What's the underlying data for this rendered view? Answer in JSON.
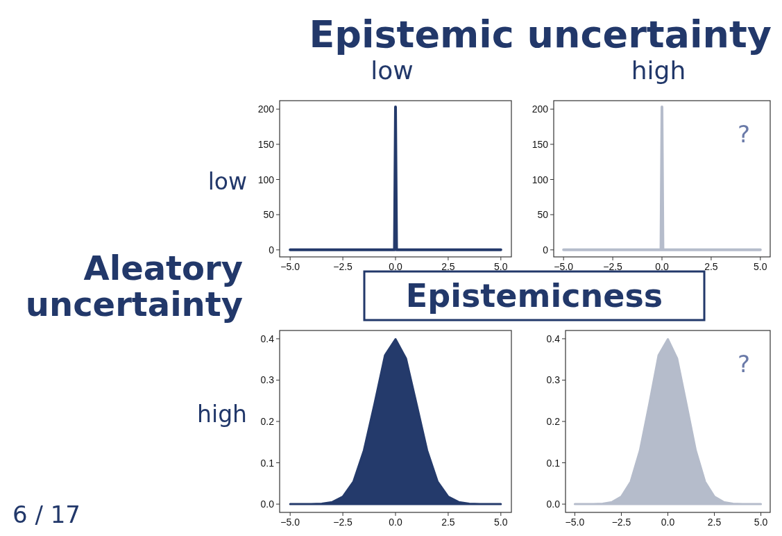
{
  "chart_data": [
    {
      "type": "line",
      "title": "low",
      "ylabel": "low",
      "annotations": [
        "Epistemic uncertainty",
        "Aleatory uncertainty",
        "Epistemicness",
        "6 / 17"
      ],
      "x": [
        -5,
        -0.05,
        0,
        0.05,
        5
      ],
      "series": [
        {
          "color": "#243a6b",
          "values": [
            0,
            0,
            203,
            0,
            0
          ]
        }
      ],
      "xlim": [
        -5.5,
        5.5
      ],
      "ylim": [
        -10,
        212
      ],
      "xticks": [
        {
          "value": -5,
          "label": "−5.0"
        },
        {
          "value": -2.5,
          "label": "−2.5"
        },
        {
          "value": 0,
          "label": "0.0"
        },
        {
          "value": 2.5,
          "label": "2.5"
        },
        {
          "value": 5,
          "label": "5.0"
        }
      ],
      "yticks": [
        0,
        50,
        100,
        150,
        200
      ]
    },
    {
      "type": "line",
      "title": "high",
      "annotations": [
        "?"
      ],
      "x": [
        -5,
        -0.05,
        0,
        0.05,
        5
      ],
      "series": [
        {
          "color": "#b5bccb",
          "values": [
            0,
            0,
            203,
            0,
            0
          ]
        }
      ],
      "xlim": [
        -5.5,
        5.5
      ],
      "ylim": [
        -10,
        212
      ],
      "xticks": [
        {
          "value": -5,
          "label": "−5.0"
        },
        {
          "value": -2.5,
          "label": "−2.5"
        },
        {
          "value": 0,
          "label": "0.0"
        },
        {
          "value": 2.5,
          "label": "2.5"
        },
        {
          "value": 5,
          "label": "5.0"
        }
      ],
      "yticks": [
        0,
        50,
        100,
        150,
        200
      ]
    },
    {
      "type": "area",
      "ylabel": "high",
      "x": [
        -5,
        -4.5,
        -4,
        -3.5,
        -3,
        -2.5,
        -2,
        -1.5,
        -1,
        -0.5,
        0,
        0.5,
        1,
        1.5,
        2,
        2.5,
        3,
        3.5,
        4,
        4.5,
        5
      ],
      "series": [
        {
          "color": "#243a6b",
          "values": [
            0,
            0,
            0,
            0.001,
            0.005,
            0.018,
            0.054,
            0.13,
            0.242,
            0.36,
            0.399,
            0.352,
            0.242,
            0.13,
            0.054,
            0.018,
            0.005,
            0.001,
            0,
            0,
            0
          ]
        }
      ],
      "xlim": [
        -5.5,
        5.5
      ],
      "ylim": [
        -0.02,
        0.42
      ],
      "xticks": [
        {
          "value": -5,
          "label": "−5.0"
        },
        {
          "value": -2.5,
          "label": "−2.5"
        },
        {
          "value": 0,
          "label": "0.0"
        },
        {
          "value": 2.5,
          "label": "2.5"
        },
        {
          "value": 5,
          "label": "5.0"
        }
      ],
      "yticks": [
        {
          "value": 0,
          "label": "0.0"
        },
        {
          "value": 0.1,
          "label": "0.1"
        },
        {
          "value": 0.2,
          "label": "0.2"
        },
        {
          "value": 0.3,
          "label": "0.3"
        },
        {
          "value": 0.4,
          "label": "0.4"
        }
      ]
    },
    {
      "type": "area",
      "annotations": [
        "?"
      ],
      "x": [
        -5,
        -4.5,
        -4,
        -3.5,
        -3,
        -2.5,
        -2,
        -1.5,
        -1,
        -0.5,
        0,
        0.5,
        1,
        1.5,
        2,
        2.5,
        3,
        3.5,
        4,
        4.5,
        5
      ],
      "series": [
        {
          "color": "#b5bccb",
          "values": [
            0,
            0,
            0,
            0.001,
            0.005,
            0.018,
            0.054,
            0.13,
            0.242,
            0.36,
            0.399,
            0.352,
            0.242,
            0.13,
            0.054,
            0.018,
            0.005,
            0.001,
            0,
            0,
            0
          ]
        }
      ],
      "xlim": [
        -5.5,
        5.5
      ],
      "ylim": [
        -0.02,
        0.42
      ],
      "xticks": [
        {
          "value": -5,
          "label": "−5.0"
        },
        {
          "value": -2.5,
          "label": "−2.5"
        },
        {
          "value": 0,
          "label": "0.0"
        },
        {
          "value": 2.5,
          "label": "2.5"
        },
        {
          "value": 5,
          "label": "5.0"
        }
      ],
      "yticks": [
        {
          "value": 0,
          "label": "0.0"
        },
        {
          "value": 0.1,
          "label": "0.1"
        },
        {
          "value": 0.2,
          "label": "0.2"
        },
        {
          "value": 0.3,
          "label": "0.3"
        },
        {
          "value": 0.4,
          "label": "0.4"
        }
      ]
    }
  ]
}
